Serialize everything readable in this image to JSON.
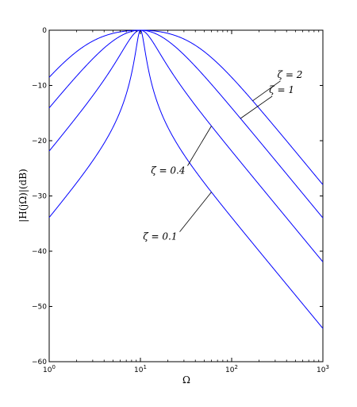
{
  "chart_data": {
    "type": "line",
    "xscale": "log",
    "xlabel": "Ω",
    "ylabel": "|H(jΩ)|(dB)",
    "xlim": [
      1,
      1000
    ],
    "ylim": [
      -60,
      0
    ],
    "x_ticks": [
      {
        "value": 1,
        "base": "10",
        "exp": "0"
      },
      {
        "value": 10,
        "base": "10",
        "exp": "1"
      },
      {
        "value": 100,
        "base": "10",
        "exp": "2"
      },
      {
        "value": 1000,
        "base": "10",
        "exp": "3"
      }
    ],
    "y_ticks": [
      {
        "value": 0,
        "label": "0"
      },
      {
        "value": -10,
        "label": "−10"
      },
      {
        "value": -20,
        "label": "−20"
      },
      {
        "value": -30,
        "label": "−30"
      },
      {
        "value": -40,
        "label": "−40"
      },
      {
        "value": -50,
        "label": "−50"
      },
      {
        "value": -60,
        "label": "−60"
      }
    ],
    "center_frequency": 10,
    "series": [
      {
        "zeta": 2,
        "label": "ζ = 2",
        "peak_db": 0,
        "low_end_db": -8.4,
        "high_end_db": -28
      },
      {
        "zeta": 1,
        "label": "ζ = 1",
        "peak_db": 0,
        "low_end_db": -14,
        "high_end_db": -34
      },
      {
        "zeta": 0.4,
        "label": "ζ = 0.4",
        "peak_db": 0,
        "low_end_db": -22,
        "high_end_db": -42
      },
      {
        "zeta": 0.1,
        "label": "ζ = 0.1",
        "peak_db": 0,
        "low_end_db": -34,
        "high_end_db": -54
      }
    ],
    "annotations": [
      {
        "text": "ζ = 2",
        "series_zeta": 2,
        "at_x": 170
      },
      {
        "text": "ζ = 1",
        "series_zeta": 1,
        "at_x": 125
      },
      {
        "text": "ζ = 0.4",
        "series_zeta": 0.4,
        "at_x": 60
      },
      {
        "text": "ζ = 0.1",
        "series_zeta": 0.1,
        "at_x": 60
      }
    ],
    "grid": false,
    "line_color": "#0000ff"
  }
}
